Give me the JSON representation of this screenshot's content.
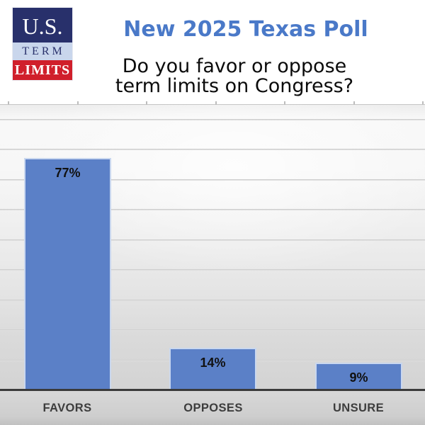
{
  "header": {
    "logo": {
      "line1": "U.S.",
      "line2": "TERM",
      "line3": "LIMITS",
      "navy": "#28306b",
      "light_blue": "#c9d6ec",
      "red": "#d01f2b"
    },
    "title": "New 2025 Texas Poll",
    "title_color": "#4a79c8",
    "subtitle_line1": "Do you favor or oppose",
    "subtitle_line2": "term limits on Congress?"
  },
  "chart_data": {
    "type": "bar",
    "title": "New 2025 Texas Poll",
    "question": "Do you favor or oppose term limits on Congress?",
    "categories": [
      "FAVORS",
      "OPPOSES",
      "UNSURE"
    ],
    "values": [
      77,
      14,
      9
    ],
    "value_labels": [
      "77%",
      "14%",
      "9%"
    ],
    "ylim": [
      0,
      95
    ],
    "gridline_step_pct": 10,
    "grid": "horizontal",
    "legend": "none",
    "bar_color": "#5b80c7",
    "bar_border_color": "#c9d7ef",
    "value_label_color": "#111111",
    "category_label_color": "#3d3d3d",
    "axis_line_color": "#3a3a3a"
  }
}
